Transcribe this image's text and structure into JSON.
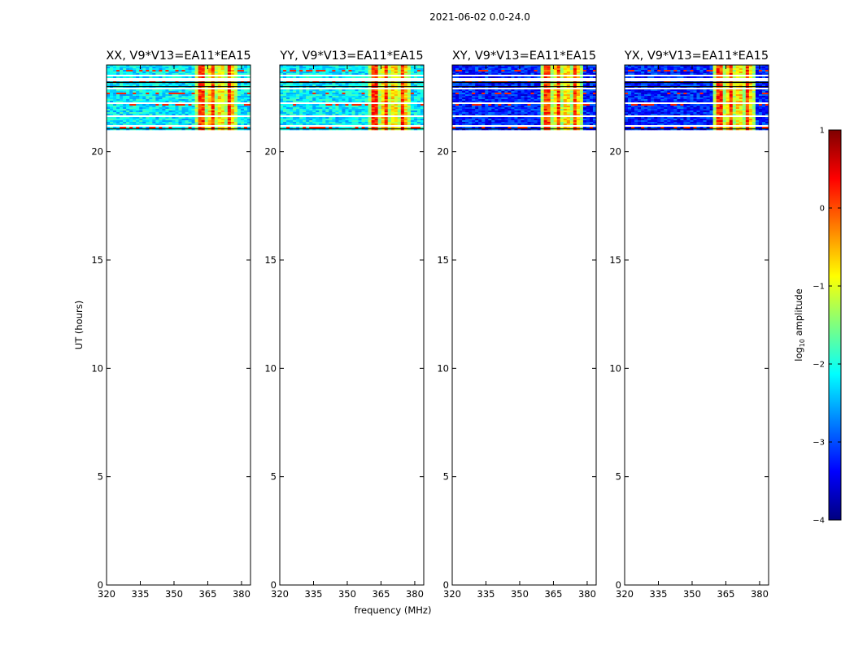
{
  "figure": {
    "suptitle": "2021-06-02 0.0-24.0",
    "xlabel": "frequency (MHz)",
    "ylabel": "UT (hours)"
  },
  "colorbar": {
    "label_prefix": "log",
    "label_sub": "10",
    "label_suffix": " amplitude",
    "ticks": [
      1,
      0,
      -1,
      -2,
      -3,
      -4
    ],
    "tick_labels": [
      "1",
      "0",
      "−1",
      "−2",
      "−3",
      "−4"
    ],
    "range": [
      -4,
      1
    ],
    "colormap": "jet",
    "colors": [
      "#00007f",
      "#0000ff",
      "#007fff",
      "#00ffff",
      "#7fff7f",
      "#ffff00",
      "#ff7f00",
      "#ff0000",
      "#7f0000"
    ]
  },
  "chart_data": [
    {
      "type": "heatmap",
      "title": "XX, V9*V13=EA11*EA15",
      "xlim": [
        320,
        384
      ],
      "ylim": [
        0,
        24
      ],
      "xticks": [
        320,
        335,
        350,
        365,
        380
      ],
      "yticks": [
        0,
        5,
        10,
        15,
        20
      ],
      "data_hours": [
        21.0,
        24.0
      ],
      "rfi_band_mhz": [
        360,
        378
      ],
      "mean_log_amplitude": -2.2
    },
    {
      "type": "heatmap",
      "title": "YY, V9*V13=EA11*EA15",
      "xlim": [
        320,
        384
      ],
      "ylim": [
        0,
        24
      ],
      "xticks": [
        320,
        335,
        350,
        365,
        380
      ],
      "yticks": [
        0,
        5,
        10,
        15,
        20
      ],
      "data_hours": [
        21.0,
        24.0
      ],
      "rfi_band_mhz": [
        360,
        378
      ],
      "mean_log_amplitude": -2.2
    },
    {
      "type": "heatmap",
      "title": "XY, V9*V13=EA11*EA15",
      "xlim": [
        320,
        384
      ],
      "ylim": [
        0,
        24
      ],
      "xticks": [
        320,
        335,
        350,
        365,
        380
      ],
      "yticks": [
        0,
        5,
        10,
        15,
        20
      ],
      "data_hours": [
        21.0,
        24.0
      ],
      "rfi_band_mhz": [
        360,
        378
      ],
      "mean_log_amplitude": -3.2
    },
    {
      "type": "heatmap",
      "title": "YX, V9*V13=EA11*EA15",
      "xlim": [
        320,
        384
      ],
      "ylim": [
        0,
        24
      ],
      "xticks": [
        320,
        335,
        350,
        365,
        380
      ],
      "yticks": [
        0,
        5,
        10,
        15,
        20
      ],
      "data_hours": [
        21.0,
        24.0
      ],
      "rfi_band_mhz": [
        360,
        378
      ],
      "mean_log_amplitude": -3.2
    }
  ]
}
